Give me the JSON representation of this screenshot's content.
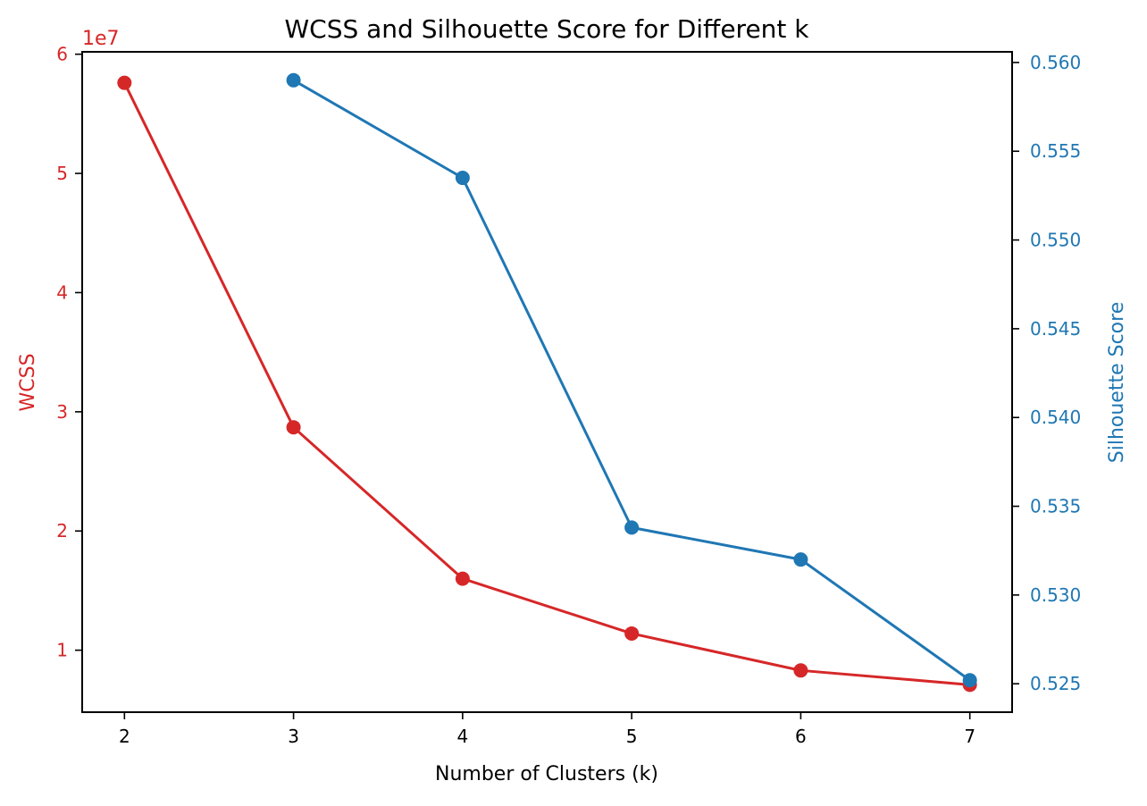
{
  "chart_data": {
    "type": "line",
    "title": "WCSS and Silhouette Score for Different k",
    "xlabel": "Number of Clusters (k)",
    "x_ticks": [
      "2",
      "3",
      "4",
      "5",
      "6",
      "7"
    ],
    "xlim": [
      1.75,
      7.25
    ],
    "left_axis": {
      "label": "WCSS",
      "color": "#d62728",
      "offset_text": "1e7",
      "ticks": [
        1,
        2,
        3,
        4,
        5,
        6
      ],
      "tick_labels": [
        "1",
        "2",
        "3",
        "4",
        "5",
        "6"
      ],
      "ylim": [
        0.48,
        6.02
      ]
    },
    "right_axis": {
      "label": "Silhouette Score",
      "color": "#1f77b4",
      "ticks": [
        0.525,
        0.53,
        0.535,
        0.54,
        0.545,
        0.55,
        0.555,
        0.56
      ],
      "tick_labels": [
        "0.525",
        "0.530",
        "0.535",
        "0.540",
        "0.545",
        "0.550",
        "0.555",
        "0.560"
      ],
      "ylim": [
        0.5234,
        0.5606
      ]
    },
    "series": [
      {
        "axis": "left",
        "color": "#d62728",
        "x": [
          2,
          3,
          4,
          5,
          6,
          7
        ],
        "values": [
          57600000,
          28700000,
          16000000,
          11400000,
          8300000,
          7100000
        ]
      },
      {
        "axis": "right",
        "color": "#1f77b4",
        "x": [
          3,
          4,
          5,
          6,
          7
        ],
        "values": [
          0.559,
          0.5535,
          0.5338,
          0.532,
          0.5252
        ]
      }
    ]
  }
}
